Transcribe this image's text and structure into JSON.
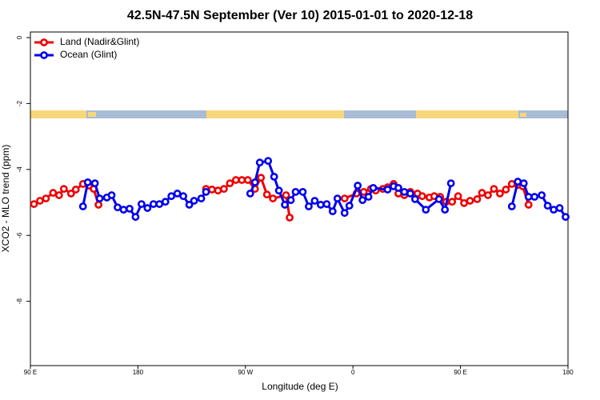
{
  "chart_data": {
    "type": "line",
    "title": "42.5N-47.5N September (Ver 10)   2015-01-01 to 2020-12-18",
    "x_label": "Longitude (deg E)",
    "y_label": "XCO2 - MLO trend (ppm)",
    "xlim": [
      90,
      540
    ],
    "ylim": [
      -9.95,
      0.17
    ],
    "xticks": [
      {
        "value": 90,
        "label": "90 E"
      },
      {
        "value": 180,
        "label": "180"
      },
      {
        "value": 270,
        "label": "90 W"
      },
      {
        "value": 360,
        "label": "0"
      },
      {
        "value": 450,
        "label": "90 E"
      },
      {
        "value": 540,
        "label": "180"
      }
    ],
    "yticks": [
      -8,
      -6,
      -4,
      -2,
      0
    ],
    "legend": "top-left",
    "series": [
      {
        "name": "Land (Nadir&Glint)",
        "color": "#ee0000",
        "x": [
          93,
          98,
          103,
          109,
          114,
          118,
          124,
          128,
          134,
          139,
          143,
          147,
          190,
          237,
          242,
          247,
          252,
          257,
          262,
          267,
          272,
          278,
          283,
          288,
          293,
          304,
          307,
          330,
          353,
          363,
          369,
          375,
          379,
          385,
          389,
          394,
          398,
          403,
          408,
          414,
          418,
          424,
          428,
          433,
          438,
          443,
          448,
          453,
          458,
          464,
          468,
          473,
          478,
          483,
          488,
          493,
          498,
          502,
          507
        ],
        "values": [
          -5.05,
          -4.95,
          -4.88,
          -4.71,
          -4.78,
          -4.59,
          -4.73,
          -4.61,
          -4.44,
          -4.49,
          -4.59,
          -5.07,
          null,
          -4.59,
          -4.61,
          -4.64,
          -4.59,
          -4.42,
          -4.32,
          -4.32,
          -4.32,
          -4.59,
          -4.25,
          -4.76,
          -4.88,
          -4.78,
          -5.46,
          null,
          -4.88,
          -4.73,
          -4.68,
          -4.59,
          -4.64,
          -4.59,
          -4.54,
          -4.44,
          -4.73,
          -4.78,
          -4.68,
          -4.73,
          -4.81,
          -4.85,
          -4.81,
          -4.83,
          -4.98,
          -4.98,
          -4.81,
          -5.02,
          -4.95,
          -4.9,
          -4.71,
          -4.78,
          -4.59,
          -4.73,
          -4.61,
          -4.44,
          -4.47,
          -4.51,
          -5.07
        ]
      },
      {
        "name": "Ocean (Glint)",
        "color": "#0000ee",
        "x": [
          134,
          138,
          144,
          148,
          154,
          158,
          163,
          168,
          173,
          178,
          183,
          188,
          193,
          198,
          203,
          208,
          213,
          218,
          223,
          227,
          233,
          237,
          250,
          274,
          278,
          282,
          289,
          294,
          298,
          303,
          308,
          312,
          318,
          323,
          328,
          333,
          338,
          343,
          347,
          353,
          357,
          364,
          368,
          373,
          377,
          389,
          394,
          398,
          403,
          408,
          412,
          421,
          432,
          437,
          442,
          470,
          493,
          498,
          503,
          507,
          512,
          518,
          523,
          528,
          533,
          538
        ],
        "values": [
          -5.12,
          -4.39,
          -4.42,
          -4.88,
          -4.85,
          -4.78,
          -5.15,
          -5.22,
          -5.19,
          -5.44,
          -5.05,
          -5.17,
          -5.05,
          -5.05,
          -4.98,
          -4.81,
          -4.73,
          -4.81,
          -5.07,
          -4.95,
          -4.88,
          -4.68,
          null,
          -4.73,
          -4.39,
          -3.79,
          -3.74,
          -4.22,
          -4.64,
          -5.07,
          -4.93,
          -4.68,
          -4.68,
          -5.12,
          -4.95,
          -5.07,
          -5.05,
          -5.27,
          -4.88,
          -5.32,
          -5.1,
          -4.49,
          -4.93,
          -4.83,
          -4.56,
          -4.61,
          -4.51,
          -4.56,
          -4.68,
          -4.73,
          -4.9,
          -5.22,
          -4.9,
          -5.22,
          -4.42,
          null,
          -5.12,
          -4.37,
          -4.42,
          -4.83,
          -4.83,
          -4.78,
          -5.1,
          -5.22,
          -5.17,
          -5.44
        ]
      }
    ]
  }
}
